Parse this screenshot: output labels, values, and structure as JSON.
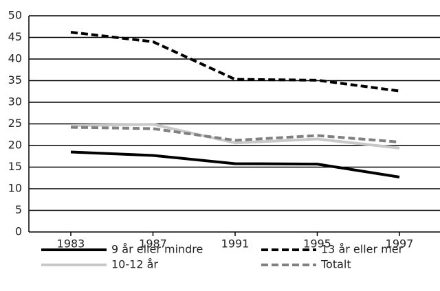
{
  "chart_data": {
    "type": "line",
    "categories": [
      "1983",
      "1987",
      "1991",
      "1995",
      "1997"
    ],
    "series": [
      {
        "name": "9 år eller mindre",
        "color": "#000000",
        "style": "solid",
        "values": [
          18.5,
          17.7,
          15.8,
          15.7,
          12.7
        ]
      },
      {
        "name": "13 år eller mer",
        "color": "#000000",
        "style": "dashed",
        "values": [
          46.2,
          44.0,
          35.3,
          35.1,
          32.6
        ]
      },
      {
        "name": "10-12 år",
        "color": "#c8c8c8",
        "style": "solid",
        "values": [
          24.6,
          24.9,
          20.6,
          21.5,
          19.4
        ]
      },
      {
        "name": "Totalt",
        "color": "#808080",
        "style": "dashed",
        "values": [
          24.2,
          23.9,
          21.2,
          22.3,
          20.8
        ]
      }
    ],
    "ylim": [
      0,
      50
    ],
    "yticks": [
      0,
      5,
      10,
      15,
      20,
      25,
      30,
      35,
      40,
      45,
      50
    ],
    "grid": true
  }
}
